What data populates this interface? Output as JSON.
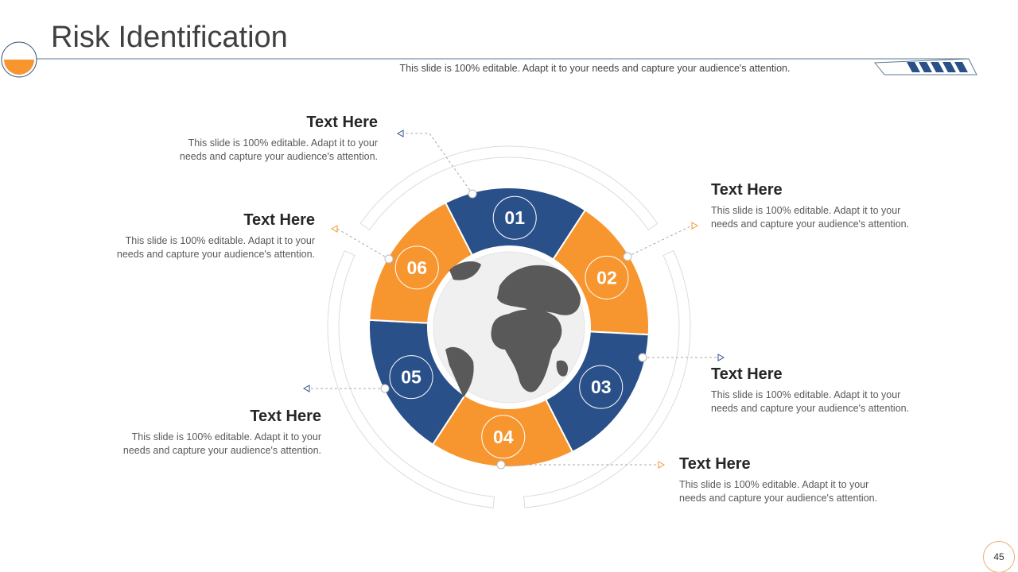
{
  "header": {
    "title": "Risk Identification",
    "subtitle": "This slide is 100% editable. Adapt it to your needs and capture your audience's attention."
  },
  "colors": {
    "blue": "#2a5089",
    "orange": "#f7962f",
    "globe_land": "#595959",
    "globe_sea": "#f0f0f0"
  },
  "segments": [
    {
      "number": "01",
      "color": "blue",
      "heading": "Text Here",
      "body_line1": "This slide is 100% editable. Adapt it to your",
      "body_line2": "needs and capture your audience's attention."
    },
    {
      "number": "02",
      "color": "orange",
      "heading": "Text Here",
      "body_line1": "This slide is 100% editable. Adapt it to your",
      "body_line2": "needs and capture your audience's attention."
    },
    {
      "number": "03",
      "color": "blue",
      "heading": "Text Here",
      "body_line1": "This slide is 100% editable. Adapt it to your",
      "body_line2": "needs and capture your audience's attention."
    },
    {
      "number": "04",
      "color": "orange",
      "heading": "Text Here",
      "body_line1": "This slide is 100% editable. Adapt it to your",
      "body_line2": "needs and capture your audience's attention."
    },
    {
      "number": "05",
      "color": "blue",
      "heading": "Text Here",
      "body_line1": "This slide is 100% editable. Adapt it to your",
      "body_line2": "needs and capture your audience's attention."
    },
    {
      "number": "06",
      "color": "orange",
      "heading": "Text Here",
      "body_line1": "This slide is 100% editable. Adapt it to your",
      "body_line2": "needs and capture your audience's attention."
    }
  ],
  "page_number": "45"
}
